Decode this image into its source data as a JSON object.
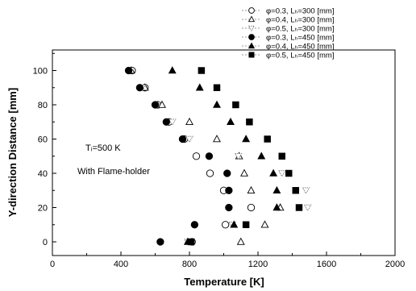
{
  "chart_data": {
    "type": "scatter",
    "xlabel": "Temperature  [K]",
    "ylabel": "Y-direction Distance  [mm]",
    "xlim": [
      0,
      2000
    ],
    "ylim": [
      -8,
      112
    ],
    "xticks": [
      "0",
      "400",
      "800",
      "1200",
      "1600",
      "2000"
    ],
    "yticks": [
      "0",
      "20",
      "40",
      "60",
      "80",
      "100"
    ],
    "annotations": [
      "Tᵢ=500 K",
      "With Flame-holder"
    ],
    "legend_position": "top-right",
    "series": [
      {
        "name": "φ=0.3,  Lₕ=300 [mm]",
        "marker": "circle-open",
        "points": [
          [
            465,
            100
          ],
          [
            540,
            90
          ],
          [
            615,
            80
          ],
          [
            680,
            70
          ],
          [
            770,
            60
          ],
          [
            840,
            50
          ],
          [
            920,
            40
          ],
          [
            1000,
            30
          ],
          [
            1160,
            20
          ],
          [
            1010,
            10
          ],
          [
            815,
            0
          ]
        ]
      },
      {
        "name": "φ=0.4,  Lₕ=300 [mm]",
        "marker": "triangle-open",
        "points": [
          [
            460,
            100
          ],
          [
            540,
            90
          ],
          [
            640,
            80
          ],
          [
            800,
            70
          ],
          [
            960,
            60
          ],
          [
            1090,
            50
          ],
          [
            1120,
            40
          ],
          [
            1160,
            30
          ],
          [
            1330,
            20
          ],
          [
            1240,
            10
          ],
          [
            1100,
            0
          ]
        ]
      },
      {
        "name": "φ=0.5,  Lₕ=300 [mm]",
        "marker": "triangle-down-open",
        "points": [
          [
            455,
            100
          ],
          [
            525,
            90
          ],
          [
            610,
            80
          ],
          [
            700,
            70
          ],
          [
            800,
            60
          ],
          [
            1085,
            50
          ],
          [
            1340,
            40
          ],
          [
            1480,
            30
          ],
          [
            1490,
            20
          ],
          [
            1050,
            10
          ],
          [
            790,
            0
          ]
        ]
      },
      {
        "name": "φ=0.3,  Lₕ=450 [mm]",
        "marker": "circle-filled",
        "points": [
          [
            445,
            100
          ],
          [
            510,
            90
          ],
          [
            600,
            80
          ],
          [
            665,
            70
          ],
          [
            760,
            60
          ],
          [
            915,
            50
          ],
          [
            1020,
            40
          ],
          [
            1030,
            30
          ],
          [
            1030,
            20
          ],
          [
            830,
            10
          ],
          [
            630,
            0
          ]
        ]
      },
      {
        "name": "φ=0.4,  Lₕ=450 [mm]",
        "marker": "triangle-filled",
        "points": [
          [
            700,
            100
          ],
          [
            860,
            90
          ],
          [
            960,
            80
          ],
          [
            1040,
            70
          ],
          [
            1130,
            60
          ],
          [
            1220,
            50
          ],
          [
            1290,
            40
          ],
          [
            1310,
            30
          ],
          [
            1310,
            20
          ],
          [
            1060,
            10
          ],
          [
            790,
            0
          ]
        ]
      },
      {
        "name": "φ=0.5,  Lₕ=450 [mm]",
        "marker": "square-filled",
        "points": [
          [
            870,
            100
          ],
          [
            960,
            90
          ],
          [
            1070,
            80
          ],
          [
            1150,
            70
          ],
          [
            1255,
            60
          ],
          [
            1340,
            50
          ],
          [
            1380,
            40
          ],
          [
            1420,
            30
          ],
          [
            1440,
            20
          ],
          [
            1130,
            10
          ],
          [
            810,
            0
          ]
        ]
      }
    ]
  }
}
